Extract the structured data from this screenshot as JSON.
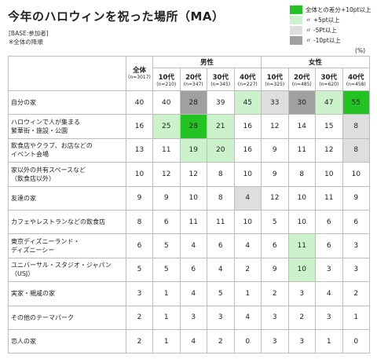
{
  "title": "今年のハロウィンを祝った場所（MA）",
  "notes": {
    "base": "[BASE:参加者]",
    "note2": "※全体の降順"
  },
  "unit": "(%)",
  "legend": {
    "heading": "全体との差分",
    "items": [
      {
        "label": "+10pt以上",
        "color": "#22c322"
      },
      {
        "label": "〃 +5pt以上",
        "color": "#ccf2cc"
      },
      {
        "label": "〃 -5Pt以上",
        "color": "#dedede"
      },
      {
        "label": "〃 -10pt以上",
        "color": "#a0a0a0"
      }
    ]
  },
  "colors": {
    "plus10": "#22c322",
    "plus5": "#ccf2cc",
    "minus5": "#dedede",
    "minus10": "#a0a0a0"
  },
  "chart_data": {
    "type": "table",
    "total": {
      "label": "全体",
      "n": "(n=3017)"
    },
    "groups": [
      {
        "name": "男性",
        "columns": [
          {
            "label": "10代",
            "n": "(n=210)"
          },
          {
            "label": "20代",
            "n": "(n=347)"
          },
          {
            "label": "30代",
            "n": "(n=345)"
          },
          {
            "label": "40代",
            "n": "(n=227)"
          }
        ]
      },
      {
        "name": "女性",
        "columns": [
          {
            "label": "10代",
            "n": "(n=325)"
          },
          {
            "label": "20代",
            "n": "(n=485)"
          },
          {
            "label": "30代",
            "n": "(n=620)"
          },
          {
            "label": "40代",
            "n": "(n=458)"
          }
        ]
      }
    ],
    "rows": [
      {
        "label": [
          "自分の家"
        ],
        "total": 40,
        "values": [
          40,
          28,
          39,
          45,
          33,
          30,
          47,
          55
        ]
      },
      {
        "label": [
          "ハロウィンで人が集まる",
          "繁華街・施設・公園"
        ],
        "total": 16,
        "values": [
          25,
          28,
          21,
          16,
          12,
          14,
          15,
          8
        ]
      },
      {
        "label": [
          "飲食店やクラブ、お店などの",
          "イベント会場"
        ],
        "total": 13,
        "values": [
          11,
          19,
          20,
          16,
          9,
          11,
          12,
          8
        ]
      },
      {
        "label": [
          "家以外の共有スペースなど",
          "（飲食店以外）"
        ],
        "total": 10,
        "values": [
          12,
          12,
          8,
          10,
          9,
          8,
          10,
          10
        ]
      },
      {
        "label": [
          "友達の家"
        ],
        "total": 9,
        "values": [
          9,
          10,
          8,
          4,
          12,
          10,
          11,
          9
        ]
      },
      {
        "label": [
          "カフェやレストランなどの飲食店"
        ],
        "total": 8,
        "values": [
          6,
          11,
          11,
          10,
          5,
          10,
          6,
          6
        ]
      },
      {
        "label": [
          "東京ディズニーランド・",
          "ディズニーシー"
        ],
        "total": 6,
        "values": [
          5,
          4,
          6,
          4,
          6,
          11,
          6,
          3
        ]
      },
      {
        "label": [
          "ユニバーサル・スタジオ・ジャパン",
          "（USJ）"
        ],
        "total": 5,
        "values": [
          5,
          6,
          4,
          2,
          9,
          10,
          3,
          3
        ]
      },
      {
        "label": [
          "実家・親戚の家"
        ],
        "total": 3,
        "values": [
          1,
          4,
          5,
          1,
          2,
          3,
          4,
          2
        ]
      },
      {
        "label": [
          "その他のテーマパーク"
        ],
        "total": 2,
        "values": [
          1,
          3,
          3,
          4,
          3,
          2,
          3,
          1
        ]
      },
      {
        "label": [
          "恋人の家"
        ],
        "total": 2,
        "values": [
          1,
          4,
          2,
          0,
          3,
          3,
          1,
          0
        ]
      }
    ]
  }
}
